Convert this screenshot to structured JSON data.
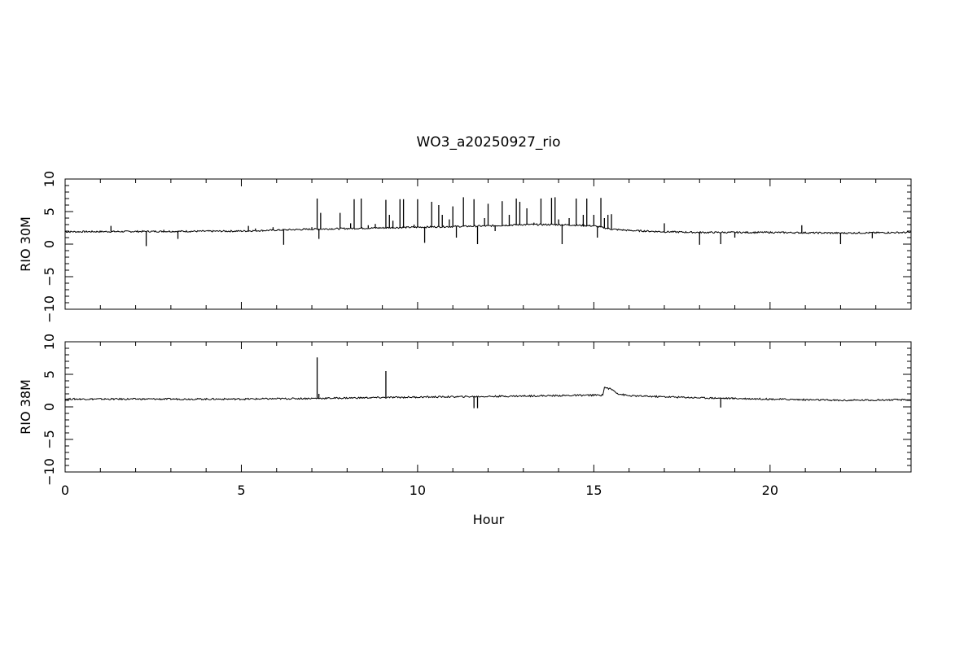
{
  "chart_data": {
    "type": "line",
    "title": "WO3_a20250927_rio",
    "xlabel": "Hour",
    "xlim": [
      0,
      24
    ],
    "x_ticks": [
      0,
      5,
      10,
      15,
      20
    ],
    "x_minor_step": 1,
    "color": "#000000",
    "grid": false,
    "panels": [
      {
        "ylabel": "RIO 30M",
        "ylim": [
          -10,
          10
        ],
        "y_ticks": [
          -10,
          -5,
          0,
          5,
          10
        ],
        "y_minor_step": 1,
        "baseline": [
          [
            0,
            1.9
          ],
          [
            5,
            2.0
          ],
          [
            7,
            2.3
          ],
          [
            8,
            2.4
          ],
          [
            10,
            2.6
          ],
          [
            12,
            2.8
          ],
          [
            13,
            3.0
          ],
          [
            14,
            3.0
          ],
          [
            15,
            2.8
          ],
          [
            15.5,
            2.3
          ],
          [
            16,
            2.1
          ],
          [
            17,
            1.9
          ],
          [
            18,
            1.8
          ],
          [
            20,
            1.8
          ],
          [
            22,
            1.7
          ],
          [
            24,
            1.8
          ]
        ],
        "spikes": [
          [
            1.3,
            2.8
          ],
          [
            2.3,
            -0.3
          ],
          [
            2.8,
            2.2
          ],
          [
            3.2,
            0.8
          ],
          [
            5.2,
            2.8
          ],
          [
            5.4,
            2.4
          ],
          [
            5.9,
            2.6
          ],
          [
            6.2,
            -0.1
          ],
          [
            7.0,
            2.6
          ],
          [
            7.15,
            7.0
          ],
          [
            7.25,
            4.8
          ],
          [
            7.2,
            0.8
          ],
          [
            7.8,
            4.8
          ],
          [
            8.1,
            3.2
          ],
          [
            8.2,
            6.9
          ],
          [
            8.4,
            7.0
          ],
          [
            8.6,
            2.9
          ],
          [
            8.8,
            3.1
          ],
          [
            9.0,
            2.5
          ],
          [
            9.1,
            6.8
          ],
          [
            9.2,
            4.5
          ],
          [
            9.3,
            3.6
          ],
          [
            9.5,
            6.9
          ],
          [
            9.6,
            6.9
          ],
          [
            9.9,
            3.0
          ],
          [
            10.0,
            6.9
          ],
          [
            10.2,
            0.2
          ],
          [
            10.4,
            6.5
          ],
          [
            10.6,
            6.0
          ],
          [
            10.7,
            4.5
          ],
          [
            10.9,
            3.8
          ],
          [
            11.0,
            5.8
          ],
          [
            11.1,
            1.0
          ],
          [
            11.3,
            7.2
          ],
          [
            11.6,
            6.9
          ],
          [
            11.7,
            0.0
          ],
          [
            11.9,
            4.0
          ],
          [
            12.0,
            6.2
          ],
          [
            12.2,
            2.0
          ],
          [
            12.4,
            6.6
          ],
          [
            12.6,
            4.5
          ],
          [
            12.8,
            7.0
          ],
          [
            12.9,
            6.5
          ],
          [
            13.1,
            5.5
          ],
          [
            13.3,
            3.3
          ],
          [
            13.5,
            7.0
          ],
          [
            13.8,
            7.1
          ],
          [
            13.9,
            7.2
          ],
          [
            14.0,
            3.8
          ],
          [
            14.1,
            0.0
          ],
          [
            14.3,
            4.0
          ],
          [
            14.5,
            7.0
          ],
          [
            14.7,
            4.5
          ],
          [
            14.8,
            7.0
          ],
          [
            15.0,
            4.5
          ],
          [
            15.1,
            1.0
          ],
          [
            15.2,
            7.1
          ],
          [
            15.3,
            4.0
          ],
          [
            15.4,
            4.5
          ],
          [
            15.5,
            4.6
          ],
          [
            17.0,
            3.2
          ],
          [
            18.0,
            -0.1
          ],
          [
            18.6,
            0.0
          ],
          [
            19.0,
            1.0
          ],
          [
            20.9,
            2.9
          ],
          [
            22.0,
            0.0
          ],
          [
            22.9,
            0.9
          ]
        ]
      },
      {
        "ylabel": "RIO 38M",
        "ylim": [
          -10,
          10
        ],
        "y_ticks": [
          -10,
          -5,
          0,
          5,
          10
        ],
        "y_minor_step": 1,
        "baseline": [
          [
            0,
            1.2
          ],
          [
            5,
            1.2
          ],
          [
            7,
            1.3
          ],
          [
            10,
            1.5
          ],
          [
            12,
            1.6
          ],
          [
            15,
            1.8
          ],
          [
            15.25,
            1.8
          ],
          [
            15.3,
            3.0
          ],
          [
            15.5,
            2.7
          ],
          [
            15.7,
            2.0
          ],
          [
            16,
            1.7
          ],
          [
            18,
            1.4
          ],
          [
            20,
            1.2
          ],
          [
            22,
            1.0
          ],
          [
            24,
            1.1
          ]
        ],
        "spikes": [
          [
            7.15,
            7.6
          ],
          [
            7.2,
            2.0
          ],
          [
            9.1,
            5.5
          ],
          [
            11.6,
            -0.2
          ],
          [
            11.7,
            -0.2
          ],
          [
            18.6,
            -0.1
          ]
        ]
      }
    ]
  }
}
